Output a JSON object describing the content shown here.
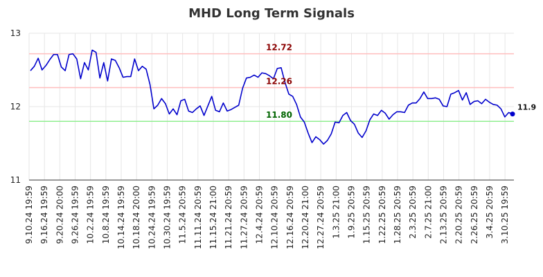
{
  "chart_data": {
    "type": "line",
    "title": "MHD Long Term Signals",
    "xlabel": "",
    "ylabel": "",
    "ylim": [
      11,
      13
    ],
    "yticks": [
      11,
      12,
      13
    ],
    "grid": true,
    "x_tick_labels": [
      "9.10.24 19:59",
      "9.16.24 19:59",
      "9.20.24 20:00",
      "9.26.24 19:59",
      "10.2.24 19:59",
      "10.8.24 19:59",
      "10.14.24 19:59",
      "10.18.24 20:00",
      "10.24.24 19:59",
      "10.30.24 19:59",
      "11.5.24 20:59",
      "11.11.24 20:59",
      "11.15.24 21:00",
      "11.21.24 20:59",
      "11.27.24 20:59",
      "12.4.24 20:59",
      "12.10.24 20:59",
      "12.16.24 20:59",
      "12.20.24 21:00",
      "12.27.24 20:59",
      "1.3.25 21:00",
      "1.9.25 20:59",
      "1.15.25 20:59",
      "1.22.25 20:59",
      "1.28.25 20:59",
      "2.3.25 20:59",
      "2.7.25 21:00",
      "2.13.25 20:59",
      "2.20.25 20:59",
      "2.26.25 20:59",
      "3.4.25 20:59",
      "3.10.25 19:59"
    ],
    "series": [
      {
        "color": "#0000cc",
        "values": [
          12.49,
          12.55,
          12.66,
          12.5,
          12.56,
          12.64,
          12.71,
          12.71,
          12.54,
          12.49,
          12.71,
          12.72,
          12.65,
          12.38,
          12.6,
          12.5,
          12.77,
          12.74,
          12.39,
          12.6,
          12.35,
          12.65,
          12.63,
          12.53,
          12.4,
          12.41,
          12.41,
          12.65,
          12.49,
          12.55,
          12.51,
          12.3,
          11.97,
          12.02,
          12.11,
          12.04,
          11.9,
          11.97,
          11.89,
          12.08,
          12.1,
          11.94,
          11.92,
          11.97,
          12.01,
          11.88,
          12.01,
          12.14,
          11.95,
          11.93,
          12.05,
          11.94,
          11.96,
          11.99,
          12.02,
          12.25,
          12.39,
          12.4,
          12.43,
          12.4,
          12.46,
          12.45,
          12.42,
          12.38,
          12.52,
          12.53,
          12.33,
          12.17,
          12.14,
          12.03,
          11.86,
          11.79,
          11.64,
          11.51,
          11.59,
          11.55,
          11.49,
          11.54,
          11.63,
          11.79,
          11.78,
          11.88,
          11.92,
          11.81,
          11.76,
          11.64,
          11.58,
          11.67,
          11.82,
          11.9,
          11.88,
          11.95,
          11.91,
          11.83,
          11.89,
          11.93,
          11.93,
          11.92,
          12.02,
          12.05,
          12.05,
          12.11,
          12.2,
          12.11,
          12.11,
          12.12,
          12.1,
          12.01,
          12.0,
          12.17,
          12.19,
          12.22,
          12.09,
          12.19,
          12.03,
          12.07,
          12.08,
          12.04,
          12.1,
          12.06,
          12.03,
          12.02,
          11.97,
          11.86,
          11.92,
          11.9
        ]
      }
    ],
    "reference_lines": [
      {
        "value": 12.72,
        "label": "12.72",
        "line_color": "#ffbdbd",
        "label_color": "#8b0000"
      },
      {
        "value": 12.26,
        "label": "12.26",
        "line_color": "#ffbdbd",
        "label_color": "#8b0000"
      },
      {
        "value": 11.8,
        "label": "11.80",
        "line_color": "#90ee90",
        "label_color": "#006400"
      }
    ],
    "last_value_label": "11.9",
    "last_point_color": "#0000cc"
  }
}
